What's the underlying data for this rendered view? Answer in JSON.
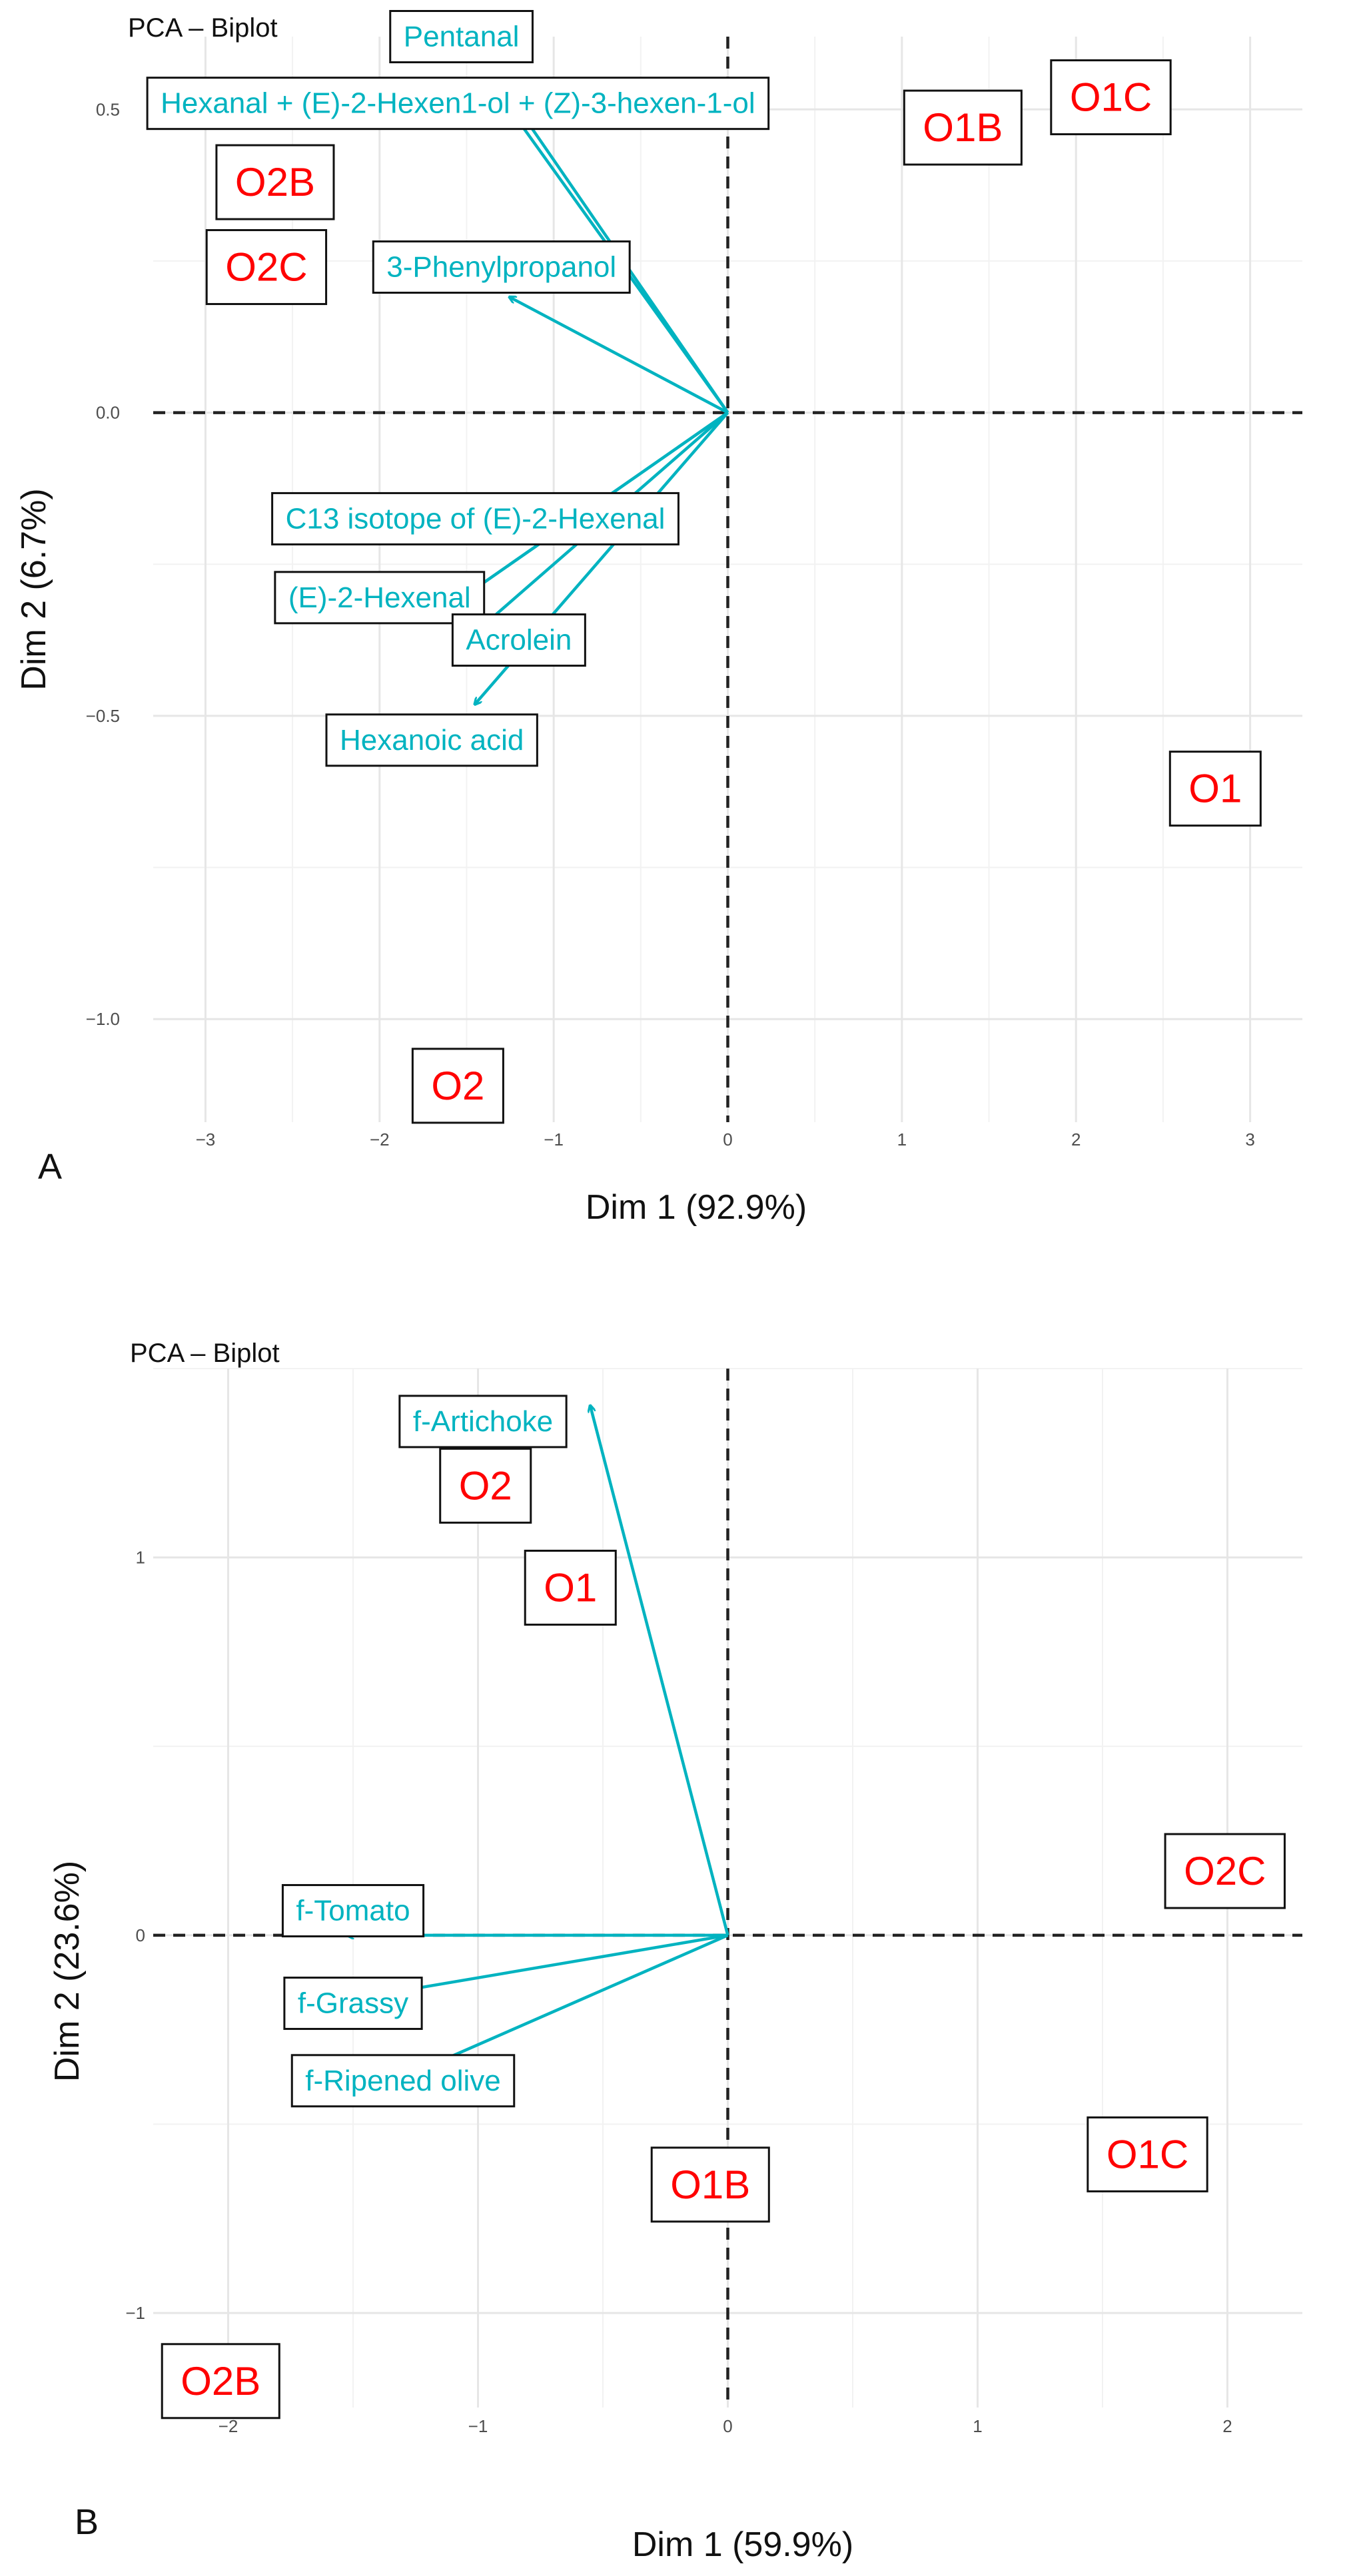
{
  "colors": {
    "variable": "#00b3c0",
    "individual": "#ff0000",
    "reference": "#222222"
  },
  "chart_data": [
    {
      "type": "scatter",
      "panel": "A",
      "title": "PCA – Biplot",
      "xlabel": "Dim 1 (92.9%)",
      "ylabel": "Dim 2 (6.7%)",
      "xlim": [
        -3.3,
        3.3
      ],
      "ylim": [
        -1.17,
        0.62
      ],
      "xticks": [
        -3,
        -2,
        -1,
        0,
        1,
        2,
        3
      ],
      "yticks": [
        -1.0,
        -0.5,
        0.0,
        0.5
      ],
      "xtick_labels": [
        "−3",
        "−2",
        "−1",
        "0",
        "1",
        "2",
        "3"
      ],
      "ytick_labels": [
        "−1.0",
        "−0.5",
        "0.0",
        "0.5"
      ],
      "variables": [
        {
          "name": "Pentanal",
          "x": -1.2,
          "y": 0.5,
          "lx": -1.53,
          "ly": 0.62
        },
        {
          "name": "Hexanal + (E)-2-Hexen1-ol + (Z)-3-hexen-1-ol",
          "x": -1.2,
          "y": 0.48,
          "lx": -1.55,
          "ly": 0.51
        },
        {
          "name": "3-Phenylpropanol",
          "x": -1.25,
          "y": 0.19,
          "lx": -1.3,
          "ly": 0.24
        },
        {
          "name": "C13 isotope of (E)-2-Hexenal",
          "x": -1.5,
          "y": -0.3,
          "lx": -1.45,
          "ly": -0.175
        },
        {
          "name": "(E)-2-Hexenal",
          "x": -1.55,
          "y": -0.31,
          "lx": -2.0,
          "ly": -0.305
        },
        {
          "name": "Acrolein",
          "x": -1.4,
          "y": -0.35,
          "lx": -1.2,
          "ly": -0.375
        },
        {
          "name": "Hexanoic acid",
          "x": -1.45,
          "y": -0.48,
          "lx": -1.7,
          "ly": -0.54
        }
      ],
      "individuals": [
        {
          "name": "O1C",
          "x": 2.2,
          "y": 0.52
        },
        {
          "name": "O1B",
          "x": 1.35,
          "y": 0.47
        },
        {
          "name": "O2B",
          "x": -2.6,
          "y": 0.38
        },
        {
          "name": "O2C",
          "x": -2.65,
          "y": 0.24
        },
        {
          "name": "O1",
          "x": 2.8,
          "y": -0.62
        },
        {
          "name": "O2",
          "x": -1.55,
          "y": -1.11
        }
      ]
    },
    {
      "type": "scatter",
      "panel": "B",
      "title": "PCA – Biplot",
      "xlabel": "Dim 1 (59.9%)",
      "ylabel": "Dim 2 (23.6%)",
      "xlim": [
        -2.3,
        2.3
      ],
      "ylim": [
        -1.25,
        1.5
      ],
      "xticks": [
        -2,
        -1,
        0,
        1,
        2
      ],
      "yticks": [
        -1,
        0,
        1
      ],
      "xtick_labels": [
        "−2",
        "−1",
        "0",
        "1",
        "2"
      ],
      "ytick_labels": [
        "−1",
        "0",
        "1"
      ],
      "variables": [
        {
          "name": "f-Artichoke",
          "x": -0.55,
          "y": 1.4,
          "lx": -0.98,
          "ly": 1.36
        },
        {
          "name": "f-Tomato",
          "x": -1.52,
          "y": 0.0,
          "lx": -1.5,
          "ly": 0.065
        },
        {
          "name": "f-Grassy",
          "x": -1.6,
          "y": -0.18,
          "lx": -1.5,
          "ly": -0.18
        },
        {
          "name": "f-Ripened olive",
          "x": -1.45,
          "y": -0.42,
          "lx": -1.3,
          "ly": -0.385
        }
      ],
      "individuals": [
        {
          "name": "O2",
          "x": -0.97,
          "y": 1.19
        },
        {
          "name": "O1",
          "x": -0.63,
          "y": 0.92
        },
        {
          "name": "O2C",
          "x": 1.99,
          "y": 0.17
        },
        {
          "name": "O1C",
          "x": 1.68,
          "y": -0.58
        },
        {
          "name": "O1B",
          "x": -0.07,
          "y": -0.66
        },
        {
          "name": "O2B",
          "x": -2.03,
          "y": -1.18
        }
      ]
    }
  ]
}
